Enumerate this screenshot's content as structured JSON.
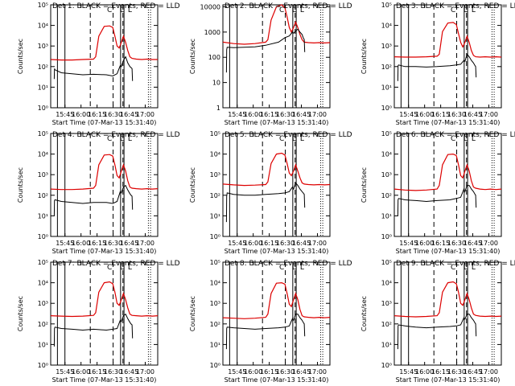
{
  "chart_data": {
    "type": "line",
    "layout": "3x3 grid of panels",
    "xlabel": "Start Time (07-Mar-13 15:31:40)",
    "ylabel": "Counts/sec",
    "x_tick_labels": [
      "15:45",
      "16:00",
      "16:15",
      "16:30",
      "16:45",
      "17:00"
    ],
    "x_ticks_minutes_after_start": [
      13.33,
      28.33,
      43.33,
      58.33,
      73.33,
      88.33
    ],
    "xlim_minutes_after_start": [
      0,
      100
    ],
    "colors": {
      "events": "#000000",
      "lld": "#dd0000"
    },
    "markers": {
      "solid_minutes": [
        6.3,
        13.3,
        65.3,
        68.5
      ],
      "dashed_minutes": [
        37.0,
        58.3,
        67.5
      ],
      "dotted_minutes": [
        91.3,
        93.3
      ],
      "top_labels": [
        {
          "label": "C",
          "x": 55.0
        },
        {
          "label": "L",
          "x": 66.5
        },
        {
          "label": "L",
          "x": 74.0
        }
      ]
    },
    "panels": [
      {
        "title": "Det  1: BLACK = Events, RED = LLD",
        "ylim": [
          1,
          100000
        ],
        "ytick_labels": [
          "10⁰",
          "10¹",
          "10²",
          "10³",
          "10⁴",
          "10⁵"
        ],
        "ytick_values": [
          1,
          10,
          100,
          1000,
          10000,
          100000
        ],
        "lld_x": [
          0,
          10,
          20,
          30,
          40,
          42,
          45,
          50,
          55,
          58,
          60,
          62,
          64,
          66,
          68,
          70,
          72,
          74,
          76,
          80,
          85,
          90,
          95,
          100
        ],
        "lld_y": [
          220,
          210,
          210,
          220,
          230,
          300,
          3000,
          9000,
          9500,
          8000,
          3000,
          1000,
          800,
          1500,
          3000,
          1500,
          600,
          300,
          250,
          230,
          220,
          230,
          220,
          220
        ],
        "events_x": [
          3.3,
          3.5,
          4.0,
          10,
          20,
          30,
          40,
          52,
          58,
          62,
          65,
          66,
          68,
          70,
          72,
          74,
          75,
          76,
          76.5
        ],
        "events_y": [
          25,
          80,
          70,
          50,
          45,
          40,
          42,
          40,
          35,
          45,
          110,
          100,
          200,
          300,
          150,
          100,
          90,
          80,
          20
        ]
      },
      {
        "title": "Det  2: BLACK = Events, RED = LLD",
        "ylim": [
          1,
          12000
        ],
        "ytick_labels": [
          "1",
          "10",
          "100",
          "1000",
          "10000"
        ],
        "ytick_values": [
          1,
          10,
          100,
          1000,
          10000
        ],
        "lld_x": [
          0,
          10,
          20,
          30,
          40,
          42,
          45,
          50,
          55,
          58,
          60,
          62,
          64,
          66,
          68,
          70,
          72,
          74,
          76,
          80,
          85,
          90,
          95,
          100
        ],
        "lld_y": [
          400,
          350,
          330,
          350,
          400,
          500,
          3000,
          10000,
          12000,
          9000,
          4000,
          1500,
          1000,
          1500,
          2500,
          1500,
          800,
          500,
          400,
          380,
          370,
          380,
          370,
          380
        ],
        "events_x": [
          3.3,
          3.5,
          4.0,
          10,
          20,
          30,
          40,
          52,
          58,
          62,
          65,
          66,
          68,
          70,
          72,
          74,
          75,
          76,
          76.5
        ],
        "events_y": [
          25,
          200,
          250,
          240,
          250,
          260,
          300,
          400,
          600,
          700,
          1000,
          900,
          1100,
          1300,
          1000,
          800,
          600,
          500,
          160
        ]
      },
      {
        "title": "Det  3: BLACK = Events, RED = LLD",
        "ylim": [
          1,
          100000
        ],
        "ytick_labels": [
          "10⁰",
          "10¹",
          "10²",
          "10³",
          "10⁴",
          "10⁵"
        ],
        "ytick_values": [
          1,
          10,
          100,
          1000,
          10000,
          100000
        ],
        "lld_x": [
          0,
          10,
          20,
          30,
          40,
          42,
          45,
          50,
          55,
          58,
          60,
          62,
          64,
          66,
          68,
          70,
          72,
          74,
          76,
          80,
          85,
          90,
          95,
          100
        ],
        "lld_y": [
          300,
          290,
          290,
          300,
          320,
          400,
          5000,
          13000,
          14000,
          11000,
          4000,
          1500,
          900,
          1500,
          3000,
          1500,
          600,
          350,
          300,
          290,
          300,
          290,
          300,
          290
        ],
        "events_x": [
          3.3,
          3.5,
          4.0,
          10,
          20,
          30,
          40,
          52,
          58,
          62,
          65,
          66,
          68,
          70,
          72,
          74,
          75,
          76,
          76.5
        ],
        "events_y": [
          20,
          110,
          120,
          100,
          100,
          95,
          100,
          110,
          120,
          130,
          200,
          180,
          400,
          300,
          200,
          150,
          120,
          100,
          30
        ]
      },
      {
        "title": "Det  4: BLACK = Events, RED = LLD",
        "ylim": [
          1,
          100000
        ],
        "ytick_labels": [
          "10⁰",
          "10¹",
          "10²",
          "10³",
          "10⁴",
          "10⁵"
        ],
        "ytick_values": [
          1,
          10,
          100,
          1000,
          10000,
          100000
        ],
        "lld_x": [
          0,
          10,
          20,
          30,
          40,
          42,
          45,
          50,
          55,
          58,
          60,
          62,
          64,
          66,
          68,
          70,
          72,
          74,
          76,
          80,
          85,
          90,
          95,
          100
        ],
        "lld_y": [
          200,
          190,
          190,
          200,
          220,
          300,
          3000,
          9000,
          9500,
          8000,
          3000,
          900,
          700,
          1500,
          3000,
          1500,
          500,
          250,
          220,
          210,
          200,
          210,
          200,
          210
        ],
        "events_x": [
          3.3,
          3.5,
          4.0,
          10,
          20,
          30,
          40,
          52,
          58,
          62,
          65,
          66,
          68,
          70,
          72,
          74,
          75,
          76,
          76.5
        ],
        "events_y": [
          10,
          55,
          60,
          50,
          45,
          40,
          45,
          45,
          40,
          50,
          150,
          130,
          250,
          300,
          180,
          120,
          100,
          90,
          20
        ]
      },
      {
        "title": "Det  5: BLACK = Events, RED = LLD",
        "ylim": [
          1,
          100000
        ],
        "ytick_labels": [
          "10⁰",
          "10¹",
          "10²",
          "10³",
          "10⁴",
          "10⁵"
        ],
        "ytick_values": [
          1,
          10,
          100,
          1000,
          10000,
          100000
        ],
        "lld_x": [
          0,
          10,
          20,
          30,
          40,
          42,
          45,
          50,
          55,
          58,
          60,
          62,
          64,
          66,
          68,
          70,
          72,
          74,
          76,
          80,
          85,
          90,
          95,
          100
        ],
        "lld_y": [
          350,
          320,
          300,
          310,
          330,
          450,
          3500,
          10000,
          11000,
          9000,
          3500,
          1200,
          900,
          1500,
          3000,
          1500,
          700,
          400,
          350,
          330,
          320,
          330,
          320,
          330
        ],
        "events_x": [
          3.3,
          3.5,
          4.0,
          10,
          20,
          30,
          40,
          52,
          58,
          62,
          65,
          66,
          68,
          70,
          72,
          74,
          75,
          76,
          76.5
        ],
        "events_y": [
          5,
          90,
          130,
          110,
          100,
          100,
          110,
          120,
          130,
          150,
          250,
          200,
          400,
          300,
          200,
          150,
          130,
          110,
          25
        ]
      },
      {
        "title": "Det  6: BLACK = Events, RED = LLD",
        "ylim": [
          1,
          100000
        ],
        "ytick_labels": [
          "10⁰",
          "10¹",
          "10²",
          "10³",
          "10⁴",
          "10⁵"
        ],
        "ytick_values": [
          1,
          10,
          100,
          1000,
          10000,
          100000
        ],
        "lld_x": [
          0,
          10,
          20,
          30,
          40,
          42,
          45,
          50,
          55,
          58,
          60,
          62,
          64,
          66,
          68,
          70,
          72,
          74,
          76,
          80,
          85,
          90,
          95,
          100
        ],
        "lld_y": [
          200,
          180,
          170,
          180,
          200,
          300,
          3000,
          9500,
          10000,
          8500,
          3000,
          900,
          700,
          1500,
          3000,
          1500,
          500,
          250,
          220,
          200,
          190,
          200,
          190,
          200
        ],
        "events_x": [
          3.3,
          3.5,
          4.0,
          10,
          20,
          30,
          40,
          52,
          58,
          62,
          65,
          66,
          68,
          70,
          72,
          74,
          75,
          76,
          76.5
        ],
        "events_y": [
          10,
          60,
          70,
          60,
          55,
          50,
          55,
          60,
          70,
          80,
          200,
          150,
          300,
          300,
          200,
          150,
          120,
          100,
          25
        ]
      },
      {
        "title": "Det  7: BLACK = Events, RED = LLD",
        "ylim": [
          1,
          100000
        ],
        "ytick_labels": [
          "10⁰",
          "10¹",
          "10²",
          "10³",
          "10⁴",
          "10⁵"
        ],
        "ytick_values": [
          1,
          10,
          100,
          1000,
          10000,
          100000
        ],
        "lld_x": [
          0,
          10,
          20,
          30,
          40,
          42,
          45,
          50,
          55,
          58,
          60,
          62,
          64,
          66,
          68,
          70,
          72,
          74,
          76,
          80,
          85,
          90,
          95,
          100
        ],
        "lld_y": [
          250,
          240,
          230,
          240,
          260,
          350,
          3500,
          10000,
          11000,
          9000,
          3500,
          1000,
          800,
          1500,
          3000,
          1500,
          600,
          300,
          260,
          250,
          240,
          250,
          240,
          250
        ],
        "events_x": [
          3.3,
          3.5,
          4.0,
          10,
          20,
          30,
          40,
          52,
          58,
          62,
          65,
          66,
          68,
          70,
          72,
          74,
          75,
          76,
          76.5
        ],
        "events_y": [
          8,
          60,
          70,
          60,
          55,
          50,
          55,
          50,
          55,
          60,
          150,
          130,
          250,
          300,
          180,
          120,
          100,
          90,
          20
        ]
      },
      {
        "title": "Det  8: BLACK = Events, RED = LLD",
        "ylim": [
          1,
          100000
        ],
        "ytick_labels": [
          "10⁰",
          "10¹",
          "10²",
          "10³",
          "10⁴",
          "10⁵"
        ],
        "ytick_values": [
          1,
          10,
          100,
          1000,
          10000,
          100000
        ],
        "lld_x": [
          0,
          10,
          20,
          30,
          40,
          42,
          45,
          50,
          55,
          58,
          60,
          62,
          64,
          66,
          68,
          70,
          72,
          74,
          76,
          80,
          85,
          90,
          95,
          100
        ],
        "lld_y": [
          200,
          190,
          180,
          190,
          210,
          300,
          3000,
          9500,
          10000,
          8500,
          3000,
          900,
          700,
          1500,
          3000,
          1500,
          500,
          250,
          220,
          210,
          200,
          210,
          200,
          210
        ],
        "events_x": [
          3.3,
          3.5,
          4.0,
          10,
          20,
          30,
          40,
          52,
          58,
          62,
          65,
          66,
          68,
          70,
          72,
          74,
          75,
          76,
          76.5
        ],
        "events_y": [
          6,
          60,
          70,
          65,
          60,
          55,
          60,
          65,
          70,
          80,
          180,
          150,
          300,
          300,
          200,
          150,
          120,
          100,
          25
        ]
      },
      {
        "title": "Det  9: BLACK = Events, RED = LLD",
        "ylim": [
          1,
          100000
        ],
        "ytick_labels": [
          "10⁰",
          "10¹",
          "10²",
          "10³",
          "10⁴",
          "10⁵"
        ],
        "ytick_values": [
          1,
          10,
          100,
          1000,
          10000,
          100000
        ],
        "lld_x": [
          0,
          10,
          20,
          30,
          40,
          42,
          45,
          50,
          55,
          58,
          60,
          62,
          64,
          66,
          68,
          70,
          72,
          74,
          76,
          80,
          85,
          90,
          95,
          100
        ],
        "lld_y": [
          250,
          230,
          220,
          230,
          250,
          350,
          3500,
          10000,
          11000,
          9000,
          3500,
          1000,
          800,
          1500,
          3000,
          1500,
          600,
          300,
          260,
          240,
          230,
          240,
          230,
          240
        ],
        "events_x": [
          3.3,
          3.5,
          4.0,
          10,
          20,
          30,
          40,
          52,
          58,
          62,
          65,
          66,
          68,
          70,
          72,
          74,
          75,
          76,
          76.5
        ],
        "events_y": [
          6,
          80,
          90,
          80,
          70,
          65,
          70,
          75,
          80,
          90,
          200,
          170,
          300,
          300,
          200,
          150,
          120,
          100,
          25
        ]
      }
    ]
  }
}
